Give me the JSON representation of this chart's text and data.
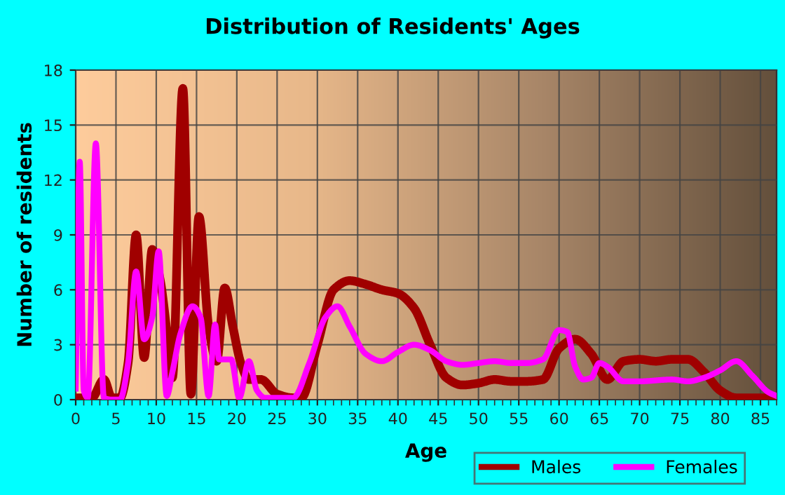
{
  "chart_data": {
    "type": "line",
    "title": "Distribution of Residents' Ages",
    "xlabel": "Age",
    "ylabel": "Number of residents",
    "xlim": [
      0,
      87
    ],
    "xticks": [
      0,
      5,
      10,
      15,
      20,
      25,
      30,
      35,
      40,
      45,
      50,
      55,
      60,
      65,
      70,
      75,
      80,
      85
    ],
    "ylim": [
      0,
      18
    ],
    "yticks": [
      0,
      3,
      6,
      9,
      12,
      15,
      18
    ],
    "grid": true,
    "legend": "bottom right",
    "series": [
      {
        "name": "Males",
        "color": "#a00000",
        "x": [
          0,
          1,
          2,
          3.5,
          4.5,
          5.5,
          6.5,
          7.5,
          8.5,
          9.5,
          10.5,
          11.5,
          12,
          13.3,
          14.3,
          15.3,
          16.5,
          17.5,
          18.5,
          19.5,
          20.5,
          21.5,
          23,
          25,
          27,
          28,
          30,
          32,
          34,
          36,
          38,
          40,
          42,
          44,
          46,
          48,
          50,
          52,
          54,
          56,
          58,
          60,
          62,
          64,
          66,
          68,
          70,
          72,
          74,
          76,
          78,
          80,
          82,
          84,
          87
        ],
        "values": [
          0.1,
          0.1,
          0.1,
          1.1,
          0.1,
          0.1,
          2,
          9,
          2.3,
          8.2,
          6.5,
          3,
          1.2,
          17,
          0.3,
          10,
          4,
          2.1,
          6.1,
          4,
          2,
          1.1,
          1.1,
          0.3,
          0.1,
          0.1,
          3,
          6,
          6.5,
          6.3,
          6,
          5.8,
          5,
          3,
          1.2,
          0.8,
          0.9,
          1.1,
          1,
          1,
          1.1,
          2.8,
          3.3,
          2.5,
          1.1,
          2.1,
          2.2,
          2.1,
          2.2,
          2.2,
          1.5,
          0.5,
          0.1,
          0.1,
          0.1
        ]
      },
      {
        "name": "Females",
        "color": "#ff00ff",
        "x": [
          0,
          0.5,
          1,
          1.5,
          2.5,
          3.5,
          4.5,
          5.5,
          6.5,
          7.5,
          8.5,
          9.5,
          10.3,
          11.3,
          12,
          13,
          14.5,
          15.5,
          16.5,
          17.3,
          17.8,
          18.5,
          19.3,
          20.3,
          21.5,
          22.5,
          23.5,
          25,
          27,
          29,
          31,
          32.5,
          34,
          36,
          38,
          40,
          42,
          44,
          46,
          48,
          50,
          52,
          54,
          56,
          58,
          60,
          61,
          62,
          63,
          64,
          65,
          66,
          68,
          70,
          74,
          76,
          78,
          80,
          82,
          84,
          86,
          87
        ],
        "values": [
          0.6,
          13,
          0.5,
          0.1,
          14,
          0.1,
          0,
          0,
          2,
          7,
          3.3,
          4.5,
          8.1,
          0.2,
          1.5,
          3.6,
          5.1,
          4.5,
          0.2,
          4.1,
          2.2,
          2.2,
          2.2,
          0.1,
          2.1,
          0.5,
          0.1,
          0.1,
          0.1,
          2,
          4.5,
          5.1,
          4,
          2.5,
          2.1,
          2.6,
          3,
          2.7,
          2.1,
          1.9,
          2,
          2.1,
          2,
          2,
          2.2,
          3.8,
          3.7,
          1.8,
          1.1,
          1.2,
          2,
          1.8,
          1,
          1,
          1.1,
          1,
          1.2,
          1.6,
          2.1,
          1.3,
          0.4,
          0.2
        ]
      }
    ]
  }
}
